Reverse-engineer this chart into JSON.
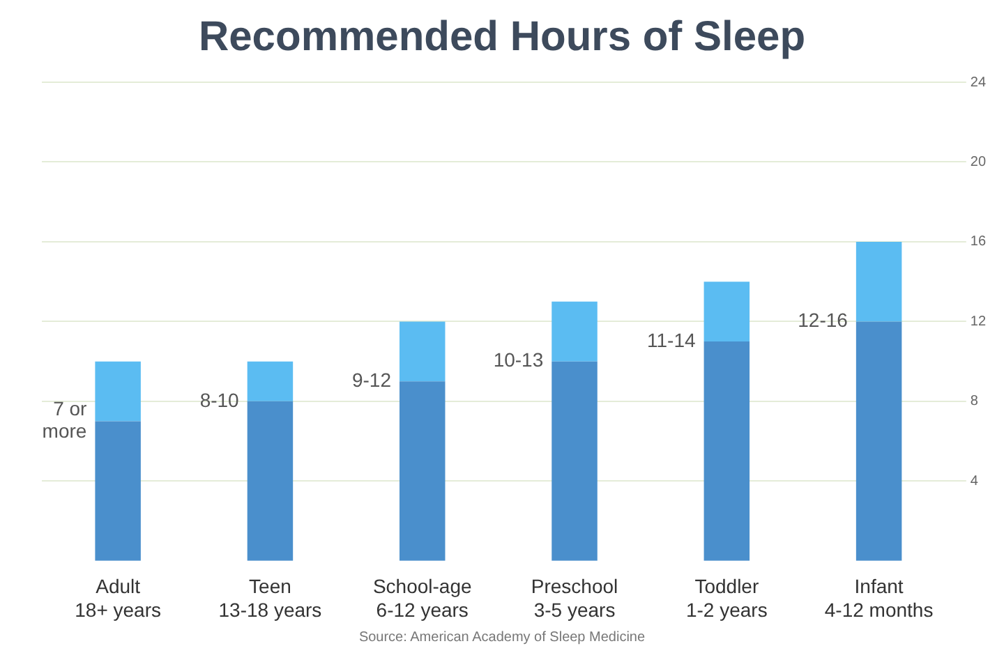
{
  "chart_data": {
    "type": "bar",
    "title": "Recommended Hours of Sleep",
    "stacked": true,
    "categories": [
      "Adult\n18+ years",
      "Teen\n13-18 years",
      "School-age\n6-12 years",
      "Preschool\n3-5 years",
      "Toddler\n1-2 years",
      "Infant\n4-12 months"
    ],
    "series": [
      {
        "color": "#4a8fcc",
        "values": [
          7,
          8,
          9,
          10,
          11,
          12
        ]
      },
      {
        "color": "#5bbcf2",
        "values": [
          3,
          2,
          3,
          3,
          3,
          4
        ]
      }
    ],
    "ylim": [
      0,
      24
    ],
    "yticks": [
      4,
      8,
      12,
      16,
      20,
      24
    ],
    "grid": "y",
    "annotations": [
      {
        "text": "7 or\nmore",
        "x": "Adult\n18+ years",
        "y": 7
      },
      {
        "text": "8-10",
        "x": "Teen\n13-18 years",
        "y": 8
      },
      {
        "text": "9-12",
        "x": "School-age\n6-12 years",
        "y": 9
      },
      {
        "text": "10-13",
        "x": "Preschool\n3-5 years",
        "y": 10
      },
      {
        "text": "11-14",
        "x": "Toddler\n1-2 years",
        "y": 11
      },
      {
        "text": "12-16",
        "x": "Infant\n4-12 months",
        "y": 12
      },
      "Source: American Academy of Sleep Medicine"
    ]
  }
}
